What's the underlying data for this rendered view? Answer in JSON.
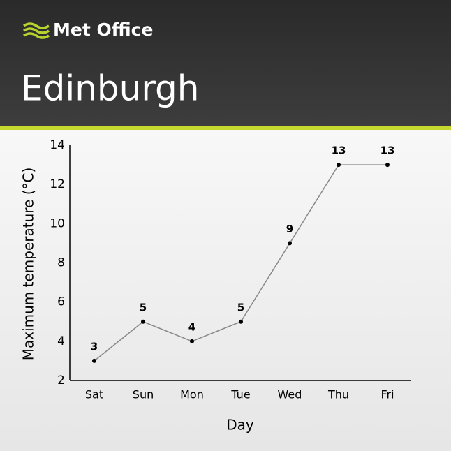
{
  "brand": "Met Office",
  "chart_data": {
    "type": "line",
    "title": "Edinburgh",
    "categories": [
      "Sat",
      "Sun",
      "Mon",
      "Tue",
      "Wed",
      "Thu",
      "Fri"
    ],
    "values": [
      3,
      5,
      4,
      5,
      9,
      13,
      13
    ],
    "color": "#888888",
    "xlabel": "Day",
    "ylabel": "Maximum temperature (°C)",
    "ylim": [
      2,
      14
    ],
    "yticks": [
      2,
      4,
      6,
      8,
      10,
      12,
      14
    ],
    "grid": false
  }
}
